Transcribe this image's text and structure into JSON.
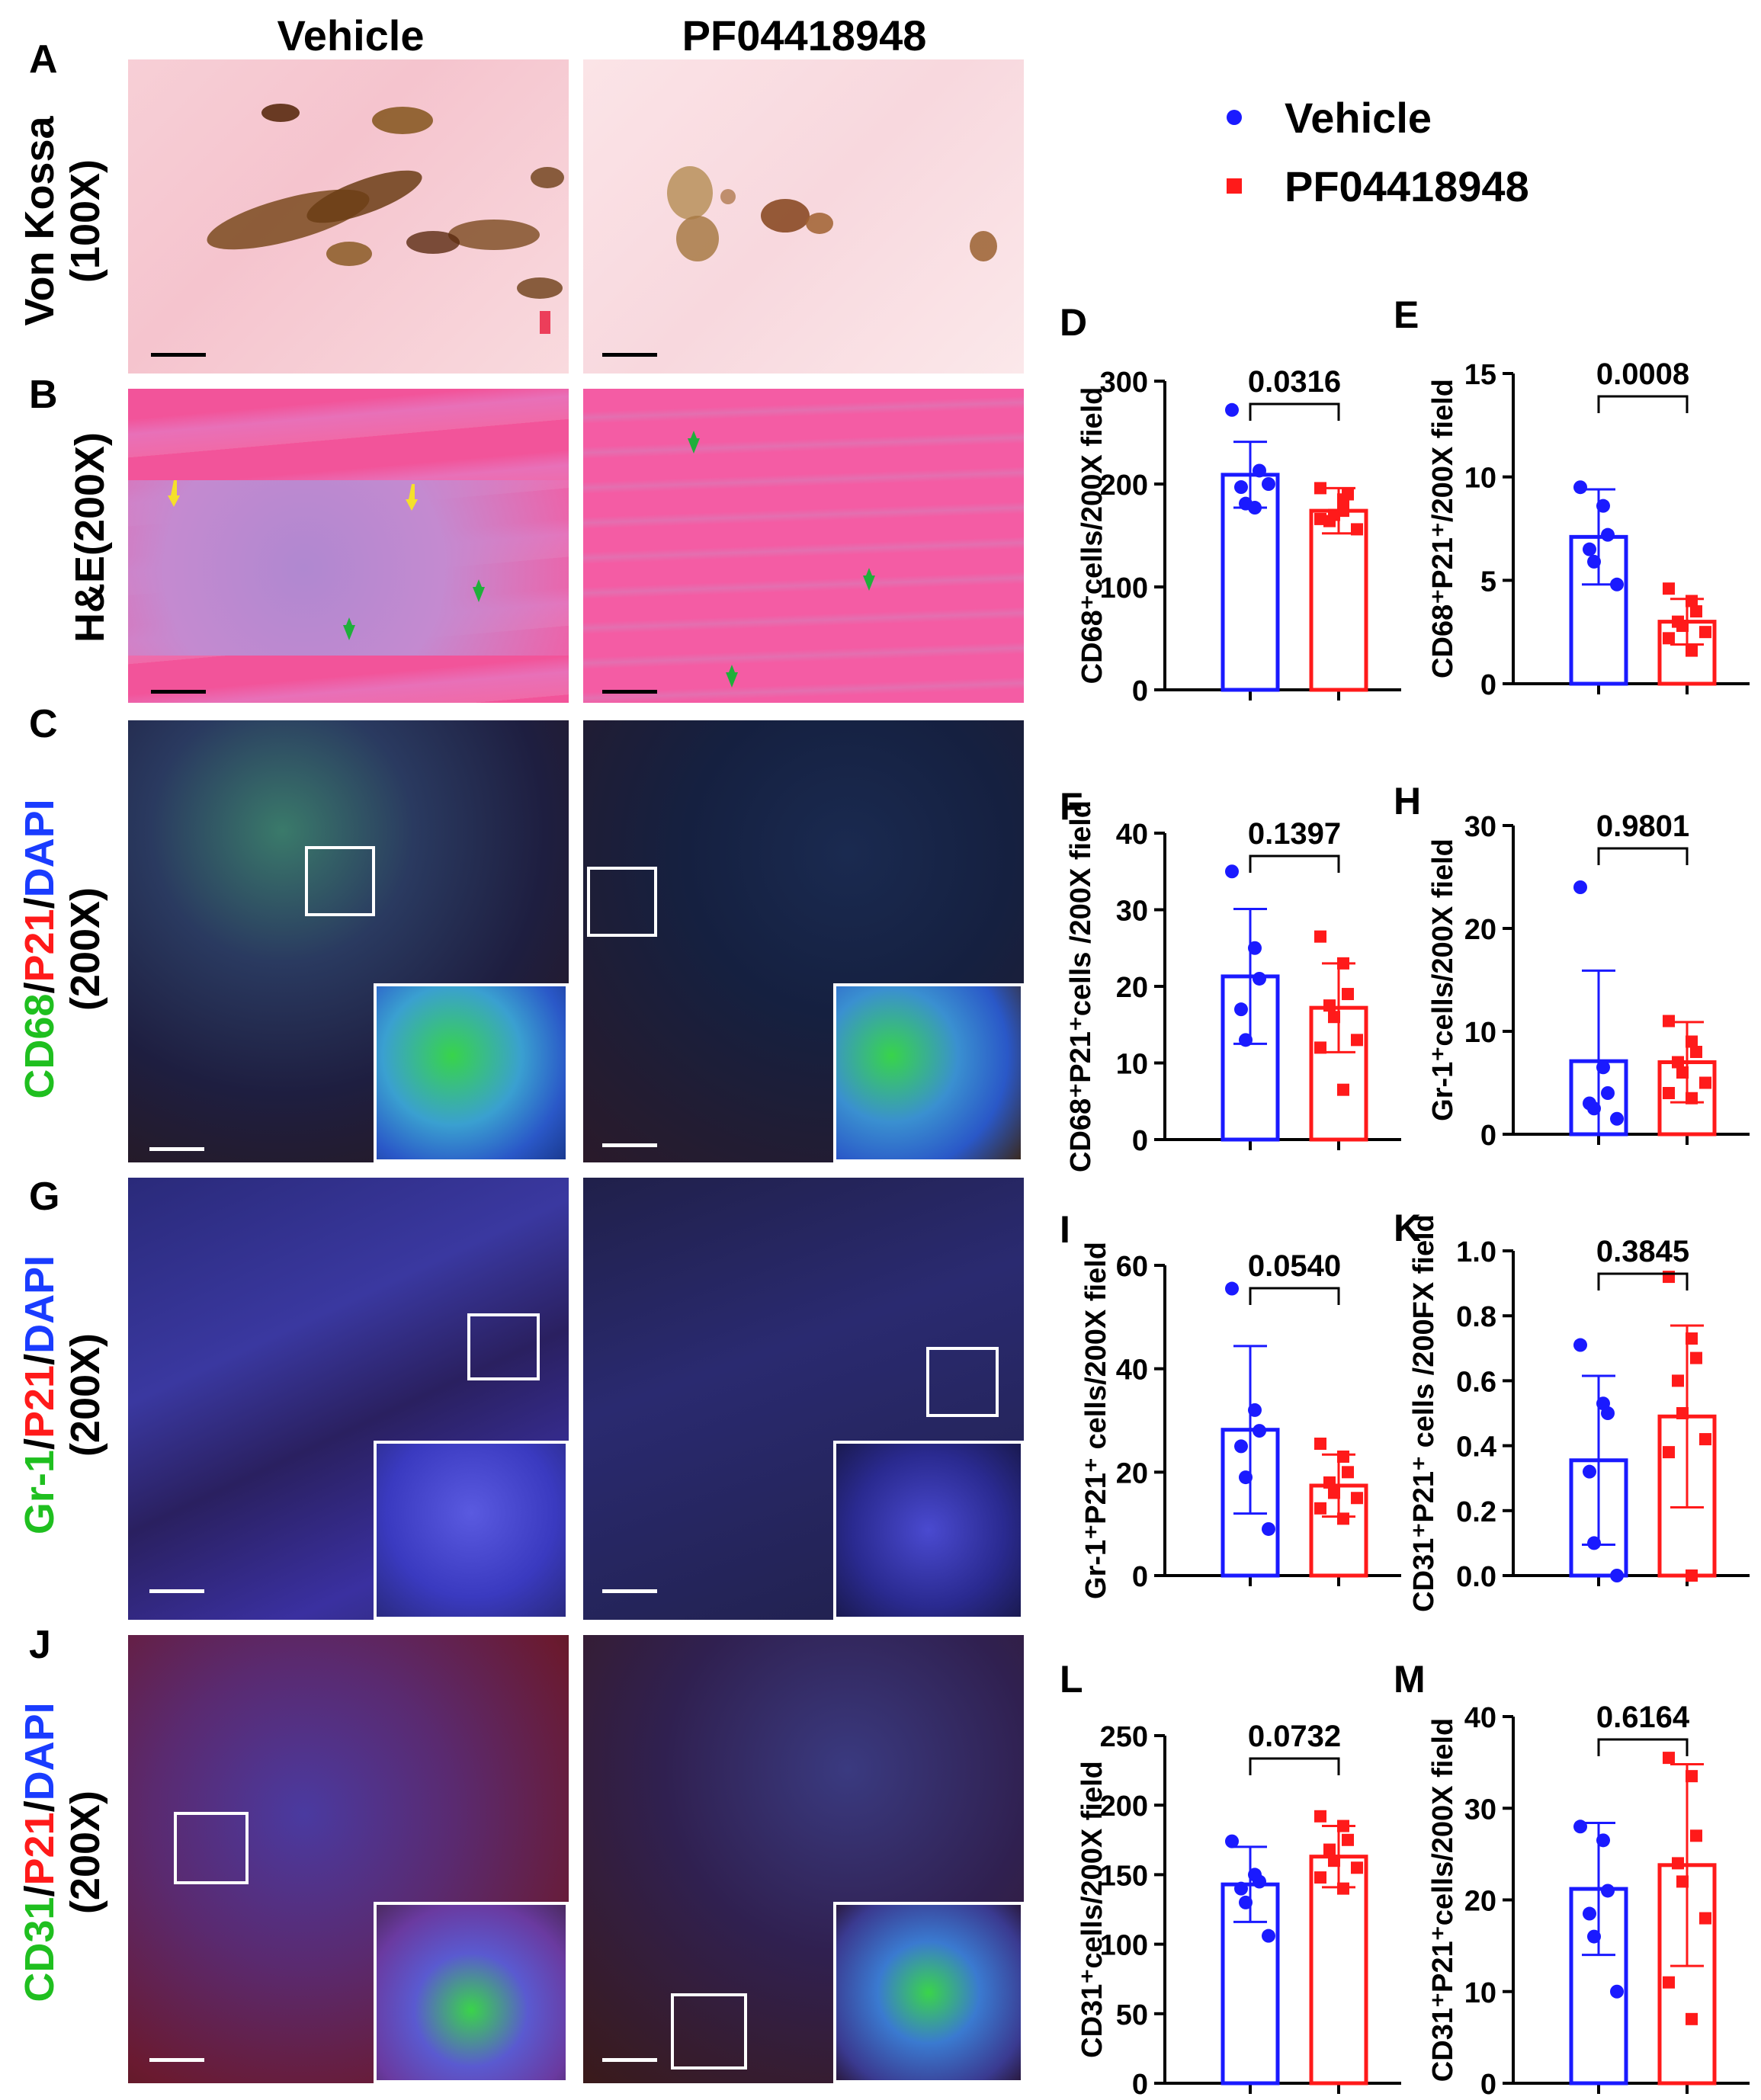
{
  "figure": {
    "column_headers": [
      "Vehicle",
      "PF04418948"
    ],
    "panel_letters": {
      "A": "A",
      "B": "B",
      "C": "C",
      "G": "G",
      "J": "J"
    },
    "row_labels": {
      "A": [
        "Von Kossa",
        "(100X)"
      ],
      "B": [
        "H&E(200X)"
      ],
      "C": {
        "parts": [
          [
            "CD68",
            "#1fbf1f"
          ],
          [
            "/",
            "#000000"
          ],
          [
            "P21",
            "#ff1a1a"
          ],
          [
            "/",
            "#000000"
          ],
          [
            "DAPI",
            "#1a3cff"
          ]
        ],
        "line2": "(200X)"
      },
      "G": {
        "parts": [
          [
            "Gr-1",
            "#1fbf1f"
          ],
          [
            "/",
            "#000000"
          ],
          [
            "P21",
            "#ff1a1a"
          ],
          [
            "/",
            "#000000"
          ],
          [
            "DAPI",
            "#1a3cff"
          ]
        ],
        "line2": "(200X)"
      },
      "J": {
        "parts": [
          [
            "CD31",
            "#1fbf1f"
          ],
          [
            "/",
            "#000000"
          ],
          [
            "P21",
            "#ff1a1a"
          ],
          [
            "/",
            "#000000"
          ],
          [
            "DAPI",
            "#1a3cff"
          ]
        ],
        "line2": "(200X)"
      }
    }
  },
  "legend": {
    "items": [
      {
        "label": "Vehicle",
        "color": "#1a1aff",
        "marker": "circle"
      },
      {
        "label": "PF04418948",
        "color": "#ff1a1a",
        "marker": "square"
      }
    ]
  },
  "colors": {
    "vehicle": "#1a1aff",
    "treated": "#ff1a1a"
  },
  "chart_data": [
    {
      "panel": "D",
      "type": "bar",
      "categories": [
        "Vehicle",
        "PF04418948"
      ],
      "values": [
        209,
        174
      ],
      "errors": [
        32,
        22
      ],
      "ylim": [
        0,
        300
      ],
      "yticks": [
        0,
        100,
        200,
        300
      ],
      "ylabel": "CD68⁺cells/200X field",
      "pvalue": "0.0316",
      "points": [
        [
          272,
          177,
          213,
          197,
          181,
          200
        ],
        [
          196,
          185,
          190,
          164,
          170,
          156,
          166,
          174
        ]
      ]
    },
    {
      "panel": "E",
      "type": "bar",
      "categories": [
        "Vehicle",
        "PF04418948"
      ],
      "values": [
        7.1,
        3.0
      ],
      "errors": [
        2.3,
        1.1
      ],
      "ylim": [
        0,
        15
      ],
      "yticks": [
        0,
        5,
        10,
        15
      ],
      "ylabel": "CD68⁺P21⁺/200X field",
      "pvalue": "0.0008",
      "points": [
        [
          9.5,
          8.6,
          7.2,
          6.5,
          5.9,
          4.8
        ],
        [
          4.6,
          4.0,
          3.5,
          3.0,
          2.8,
          2.5,
          2.2,
          1.6
        ]
      ]
    },
    {
      "panel": "F",
      "type": "bar",
      "categories": [
        "Vehicle",
        "PF04418948"
      ],
      "values": [
        21.3,
        17.2
      ],
      "errors": [
        8.8,
        5.8
      ],
      "ylim": [
        0,
        40
      ],
      "yticks": [
        0,
        10,
        20,
        30,
        40
      ],
      "ylabel": "CD68⁺P21⁺cells /200X field",
      "pvalue": "0.1397",
      "points": [
        [
          35,
          25,
          21,
          17,
          13
        ],
        [
          26.5,
          23,
          19,
          17.5,
          16,
          13,
          12,
          6.5
        ]
      ]
    },
    {
      "panel": "H",
      "type": "bar",
      "categories": [
        "Vehicle",
        "PF04418948"
      ],
      "values": [
        7.1,
        7.0
      ],
      "errors": [
        8.8,
        3.9
      ],
      "ylim": [
        0,
        30
      ],
      "yticks": [
        0,
        10,
        20,
        30
      ],
      "ylabel": "Gr-1⁺cells/200X field",
      "pvalue": "0.9801",
      "points": [
        [
          24,
          6.5,
          4,
          3,
          2.5,
          1.5
        ],
        [
          11,
          9,
          8,
          7,
          6,
          5,
          4,
          3.5
        ]
      ]
    },
    {
      "panel": "I",
      "type": "bar",
      "categories": [
        "Vehicle",
        "PF04418948"
      ],
      "values": [
        28.2,
        17.4
      ],
      "errors": [
        16.2,
        6.0
      ],
      "ylim": [
        0,
        60
      ],
      "yticks": [
        0,
        20,
        40,
        60
      ],
      "ylabel": "Gr-1⁺P21⁺ cells/200X field",
      "pvalue": "0.0540",
      "points": [
        [
          55.5,
          32,
          28,
          25,
          19,
          9
        ],
        [
          25.5,
          23,
          20,
          18,
          16,
          15,
          13,
          11
        ]
      ]
    },
    {
      "panel": "K",
      "type": "bar",
      "categories": [
        "Vehicle",
        "PF04418948"
      ],
      "values": [
        0.355,
        0.49
      ],
      "errors": [
        0.26,
        0.28
      ],
      "ylim": [
        0,
        1.0
      ],
      "yticks": [
        0.0,
        0.2,
        0.4,
        0.6,
        0.8,
        1.0
      ],
      "ylabel": "CD31⁺P21⁺ cells /200FX field",
      "pvalue": "0.3845",
      "points": [
        [
          0.71,
          0.53,
          0.5,
          0.32,
          0.1,
          0.0
        ],
        [
          0.92,
          0.73,
          0.67,
          0.6,
          0.5,
          0.42,
          0.38,
          0.0
        ]
      ]
    },
    {
      "panel": "L",
      "type": "bar",
      "categories": [
        "Vehicle",
        "PF04418948"
      ],
      "values": [
        143,
        163
      ],
      "errors": [
        27,
        22
      ],
      "ylim": [
        0,
        250
      ],
      "yticks": [
        0,
        50,
        100,
        150,
        200,
        250
      ],
      "ylabel": "CD31⁺cells/200X field",
      "pvalue": "0.0732",
      "points": [
        [
          174,
          150,
          145,
          140,
          130,
          106
        ],
        [
          192,
          185,
          175,
          168,
          160,
          155,
          148,
          140
        ]
      ]
    },
    {
      "panel": "M",
      "type": "bar",
      "categories": [
        "Vehicle",
        "PF04418948"
      ],
      "values": [
        21.2,
        23.8
      ],
      "errors": [
        7.2,
        11.0
      ],
      "ylim": [
        0,
        40
      ],
      "yticks": [
        0,
        10,
        20,
        30,
        40
      ],
      "ylabel": "CD31⁺P21⁺cells/200X field",
      "pvalue": "0.6164",
      "points": [
        [
          28,
          26.5,
          21,
          18.5,
          16,
          10
        ],
        [
          35.5,
          33.5,
          27,
          24,
          22,
          18,
          11,
          7
        ]
      ]
    }
  ]
}
